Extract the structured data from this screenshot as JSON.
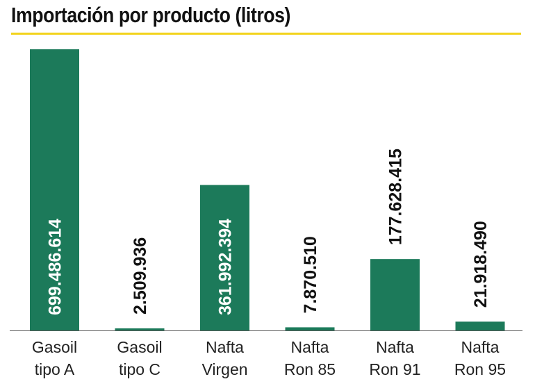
{
  "title": "Importación por producto (litros)",
  "colors": {
    "bar": "#1c7a5a",
    "accent_rule": "#f2d31b",
    "label_inside": "#ffffff",
    "label_outside": "#111111",
    "baseline": "#555555"
  },
  "chart_data": {
    "type": "bar",
    "title": "Importación por producto (litros)",
    "xlabel": "",
    "ylabel": "",
    "categories": [
      [
        "Gasoil",
        "tipo A"
      ],
      [
        "Gasoil",
        "tipo C"
      ],
      [
        "Nafta",
        "Virgen"
      ],
      [
        "Nafta",
        "Ron 85"
      ],
      [
        "Nafta",
        "Ron 91"
      ],
      [
        "Nafta",
        "Ron 95"
      ]
    ],
    "values": [
      699486614,
      2509936,
      361992394,
      7870510,
      177628415,
      21918490
    ],
    "data_labels": [
      "699.486.614",
      "2.509.936",
      "361.992.394",
      "7.870.510",
      "177.628.415",
      "21.918.490"
    ],
    "label_position": [
      "inside",
      "above",
      "inside",
      "above",
      "above",
      "above"
    ],
    "ylim": [
      0,
      699486614
    ],
    "grid": false,
    "legend": "none"
  }
}
